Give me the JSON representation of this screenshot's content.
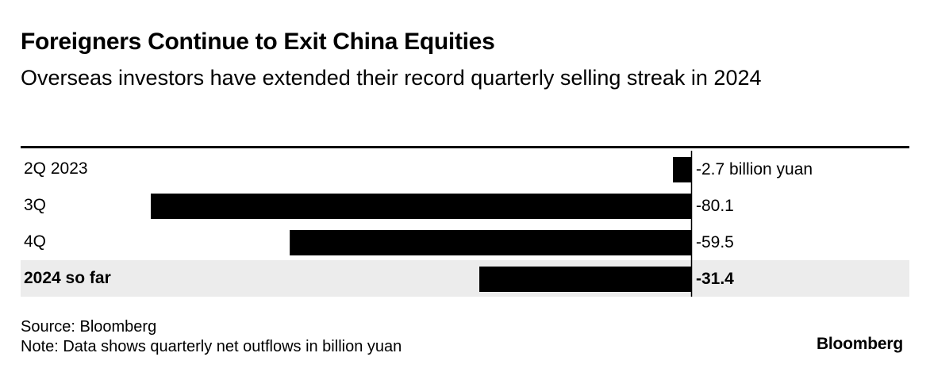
{
  "title": "Foreigners Continue to Exit China Equities",
  "subtitle": "Overseas investors have extended their record quarterly selling streak in 2024",
  "source": "Source: Bloomberg",
  "note": "Note: Data shows quarterly net outflows in billion yuan",
  "brand": "Bloomberg",
  "colors": {
    "bar": "#000000",
    "highlight_row": "#ececec",
    "text": "#000000"
  },
  "chart_data": {
    "type": "bar",
    "orientation": "horizontal",
    "unit": "billion yuan",
    "categories": [
      "2Q 2023",
      "3Q",
      "4Q",
      "2024 so far"
    ],
    "values": [
      -2.7,
      -80.1,
      -59.5,
      -31.4
    ],
    "value_labels": [
      "-2.7 billion yuan",
      "-80.1",
      "-59.5",
      "-31.4"
    ],
    "highlighted_category": "2024 so far",
    "xlim": [
      -80.1,
      0
    ],
    "grid": false,
    "legend": "none"
  }
}
